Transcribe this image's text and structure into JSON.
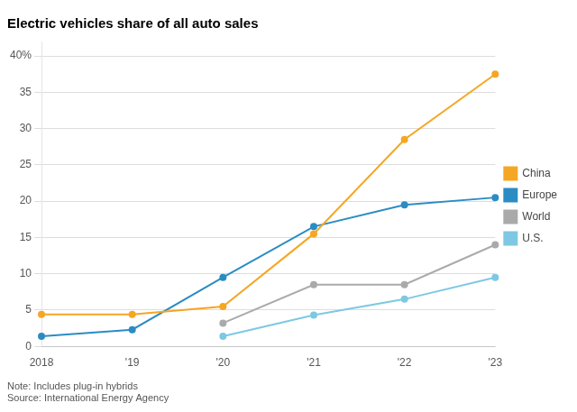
{
  "chart_data": {
    "type": "line",
    "title": "Electric vehicles share of all auto sales",
    "categories": [
      "2018",
      "'19",
      "'20",
      "'21",
      "'22",
      "'23"
    ],
    "series": [
      {
        "name": "China",
        "color": "#F5A623",
        "values": [
          4.4,
          4.4,
          5.5,
          15.5,
          28.5,
          37.5
        ]
      },
      {
        "name": "Europe",
        "color": "#2B8CC4",
        "values": [
          1.4,
          2.3,
          9.5,
          16.5,
          19.5,
          20.5
        ]
      },
      {
        "name": "World",
        "color": "#AAAAAA",
        "values": [
          null,
          null,
          3.2,
          8.5,
          8.5,
          14.0
        ]
      },
      {
        "name": "U.S.",
        "color": "#7EC8E3",
        "values": [
          null,
          null,
          1.4,
          4.3,
          6.5,
          9.5
        ]
      }
    ],
    "marker": "circle",
    "ylim": [
      0,
      42
    ],
    "yticks": [
      0,
      5,
      10,
      15,
      20,
      25,
      30,
      35,
      {
        "value": 40,
        "label": "40%"
      }
    ],
    "grid": true,
    "legend": "right",
    "annotations": [
      "Note: Includes plug-in hybrids",
      "Source: International Energy Agency"
    ]
  }
}
